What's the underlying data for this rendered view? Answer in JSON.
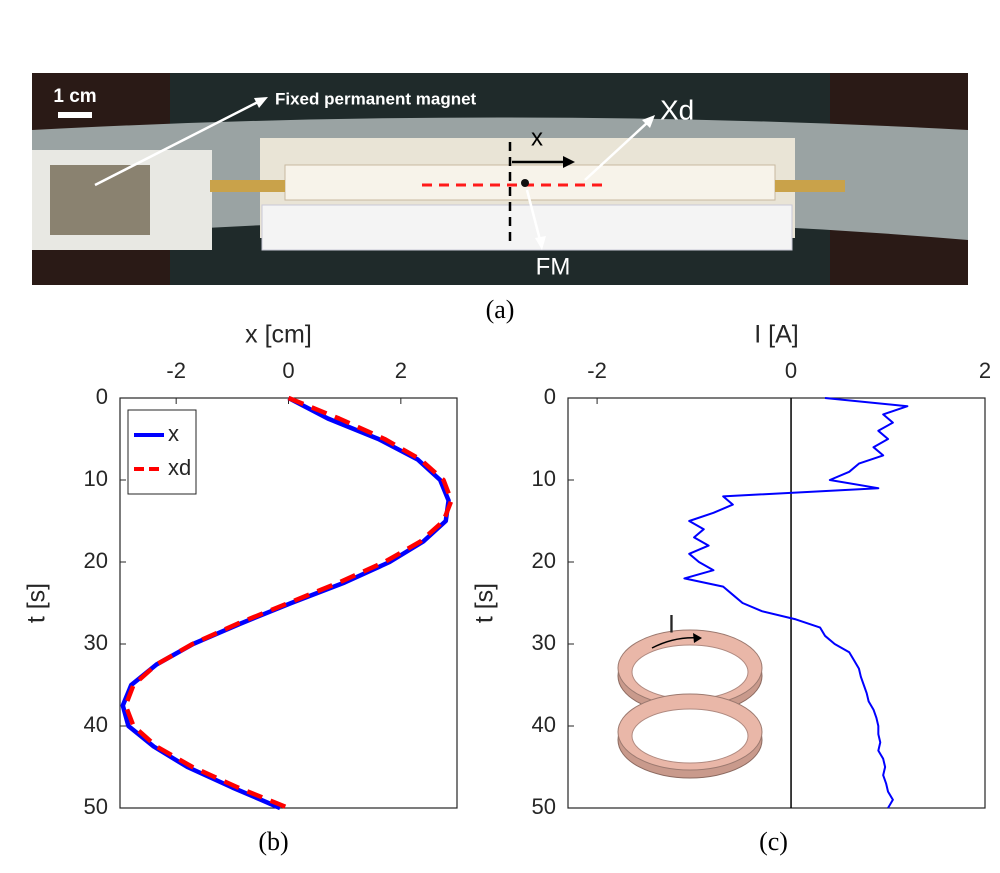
{
  "photo": {
    "scale_label": "1 cm",
    "magnet_label": "Fixed permanent magnet",
    "x_label": "x",
    "xd_label": "Xd",
    "fm_label": "FM",
    "caption": "(a)"
  },
  "chart_data": [
    {
      "type": "line",
      "caption": "(b)",
      "xlabel": "x [cm]",
      "ylabel": "t [s]",
      "xlim": [
        -3,
        3
      ],
      "xticks": [
        -2,
        0,
        2
      ],
      "ylim": [
        0,
        50
      ],
      "yticks": [
        0,
        10,
        20,
        30,
        40,
        50
      ],
      "y_reversed": true,
      "legend": "upper left",
      "x": [
        0,
        2.5,
        5,
        7.5,
        10,
        12.5,
        15,
        17.5,
        20,
        22.5,
        25,
        27.5,
        30,
        32.5,
        35,
        37.5,
        40,
        42.5,
        45,
        47.5,
        50
      ],
      "series": [
        {
          "name": "x",
          "color": "#0000ff",
          "dash": false,
          "values": [
            0,
            0.7,
            1.6,
            2.3,
            2.7,
            2.85,
            2.8,
            2.4,
            1.8,
            1.0,
            0.05,
            -0.85,
            -1.7,
            -2.35,
            -2.8,
            -2.95,
            -2.85,
            -2.4,
            -1.8,
            -1.0,
            -0.15
          ]
        },
        {
          "name": "xd",
          "color": "#ff0000",
          "dash": true,
          "values": [
            0,
            0.9,
            1.71,
            2.35,
            2.76,
            2.9,
            2.76,
            2.35,
            1.71,
            0.9,
            0,
            -0.9,
            -1.71,
            -2.35,
            -2.76,
            -2.9,
            -2.76,
            -2.35,
            -1.71,
            -0.9,
            0
          ]
        }
      ]
    },
    {
      "type": "line",
      "caption": "(c)",
      "xlabel": "I [A]",
      "ylabel": "t [s]",
      "inset_label": "I",
      "xlim": [
        -2.3,
        2
      ],
      "xticks": [
        -2,
        0,
        2
      ],
      "ylim": [
        0,
        50
      ],
      "yticks": [
        0,
        10,
        20,
        30,
        40,
        50
      ],
      "y_reversed": true,
      "zero_line": true,
      "x": [
        0,
        1,
        2,
        3,
        4,
        5,
        6,
        7,
        8,
        9,
        10,
        11,
        12,
        13,
        14,
        15,
        16,
        17,
        18,
        19,
        20,
        21,
        22,
        23,
        24,
        25,
        26,
        27,
        28,
        29,
        30,
        31,
        32,
        33,
        34,
        35,
        36,
        37,
        38,
        39,
        40,
        41,
        42,
        43,
        44,
        45,
        46,
        47,
        48,
        49,
        50
      ],
      "series": [
        {
          "name": "I",
          "color": "#0000ff",
          "dash": false,
          "values": [
            0.35,
            1.2,
            0.95,
            1.05,
            0.9,
            1.0,
            0.85,
            0.95,
            0.7,
            0.6,
            0.4,
            0.9,
            -0.7,
            -0.6,
            -0.8,
            -1.05,
            -0.9,
            -1.0,
            -0.85,
            -1.05,
            -0.95,
            -0.8,
            -1.1,
            -0.7,
            -0.6,
            -0.5,
            -0.3,
            0.05,
            0.3,
            0.35,
            0.45,
            0.6,
            0.65,
            0.7,
            0.72,
            0.75,
            0.78,
            0.8,
            0.85,
            0.88,
            0.9,
            0.9,
            0.92,
            0.9,
            0.95,
            0.97,
            0.95,
            0.98,
            1.0,
            1.05,
            1.0
          ]
        }
      ]
    }
  ]
}
